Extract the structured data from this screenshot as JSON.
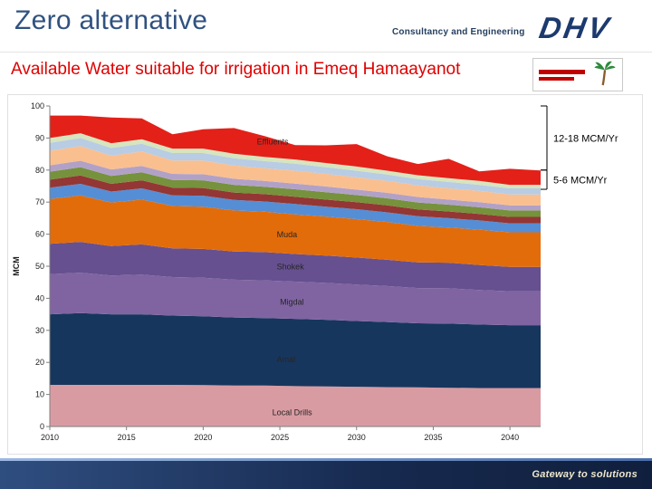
{
  "slide": {
    "title": "Zero alternative",
    "subtitle": "Available Water suitable for irrigation in Emeq Hamaayanot",
    "consultancy_text": "Consultancy and Engineering",
    "logo_text": "DHV",
    "footer_tagline": "Gateway to solutions"
  },
  "annotations": {
    "brackets": [
      {
        "label": "12-18 MCM/Yr",
        "from": 100,
        "to": 80
      },
      {
        "label": "5-6 MCM/Yr",
        "from": 80,
        "to": 74
      }
    ]
  },
  "chart_data": {
    "type": "area",
    "stacked": true,
    "title": "Available Water suitable for irrigation in Emeq Hamaayanot",
    "xlabel": "",
    "ylabel": "MCM",
    "ylim": [
      0,
      100
    ],
    "y_ticks": [
      0,
      10,
      20,
      30,
      40,
      50,
      60,
      70,
      80,
      90,
      100
    ],
    "x_ticks": [
      2010,
      2015,
      2020,
      2025,
      2030,
      2035,
      2040
    ],
    "x": [
      2010,
      2012,
      2014,
      2016,
      2018,
      2020,
      2022,
      2024,
      2026,
      2028,
      2030,
      2032,
      2034,
      2036,
      2038,
      2040,
      2042
    ],
    "series": [
      {
        "label": "Local Drills",
        "color": "#d99ba2",
        "values": [
          13,
          13,
          13,
          13,
          13,
          12.9,
          12.8,
          12.8,
          12.6,
          12.5,
          12.4,
          12.3,
          12.2,
          12.1,
          12,
          12,
          12
        ]
      },
      {
        "label": "Amal",
        "color": "#17365d",
        "values": [
          22,
          22.4,
          22,
          22,
          21.6,
          21.5,
          21.2,
          21,
          21,
          20.8,
          20.5,
          20.3,
          20,
          20,
          19.8,
          19.6,
          19.6
        ]
      },
      {
        "label": "Migdal",
        "color": "#8064a2",
        "values": [
          12.5,
          12.6,
          12.1,
          12.4,
          12,
          12,
          11.8,
          11.8,
          11.6,
          11.5,
          11.4,
          11.2,
          11,
          11,
          10.8,
          10.6,
          10.6
        ]
      },
      {
        "label": "Shokek",
        "color": "#66508f",
        "values": [
          9.5,
          9.6,
          9.2,
          9.4,
          9,
          9,
          8.8,
          8.8,
          8.6,
          8.5,
          8.4,
          8.2,
          8,
          8,
          7.8,
          7.6,
          7.6
        ]
      },
      {
        "label": "Muda",
        "color": "#e36c0a",
        "values": [
          14,
          14.5,
          13.6,
          14,
          13.2,
          13.2,
          12.8,
          12.6,
          12.4,
          12.2,
          12,
          11.8,
          11.4,
          11,
          11,
          10.8,
          10.8
        ]
      },
      {
        "label": "",
        "color": "#558ed5",
        "values": [
          3.5,
          3.6,
          3.4,
          3.5,
          3.3,
          3.4,
          3.3,
          3.2,
          3.2,
          3.1,
          3.1,
          3,
          3,
          2.9,
          2.9,
          2.8,
          2.8
        ]
      },
      {
        "label": "",
        "color": "#943634",
        "values": [
          2.5,
          2.6,
          2.4,
          2.5,
          2.4,
          2.4,
          2.3,
          2.3,
          2.3,
          2.2,
          2.2,
          2.2,
          2.1,
          2.1,
          2,
          2,
          2
        ]
      },
      {
        "label": "",
        "color": "#76923c",
        "values": [
          2.5,
          2.6,
          2.5,
          2.5,
          2.4,
          2.4,
          2.4,
          2.3,
          2.3,
          2.3,
          2.2,
          2.2,
          2.2,
          2.1,
          2.1,
          2,
          2
        ]
      },
      {
        "label": "",
        "color": "#b2a1c7",
        "values": [
          2,
          2,
          2,
          2,
          1.9,
          1.9,
          1.9,
          1.8,
          1.8,
          1.8,
          1.7,
          1.7,
          1.7,
          1.6,
          1.6,
          1.6,
          1.6
        ]
      },
      {
        "label": "",
        "color": "#fabf8f",
        "values": [
          4.5,
          4.6,
          4.3,
          4.5,
          4.2,
          4.3,
          4.1,
          4,
          4,
          3.9,
          3.8,
          3.7,
          3.6,
          3.5,
          3.5,
          3.4,
          3.4
        ]
      },
      {
        "label": "",
        "color": "#b8cce4",
        "values": [
          2.5,
          2.5,
          2.4,
          2.4,
          2.3,
          2.3,
          2.3,
          2.2,
          2.2,
          2.1,
          2.1,
          2,
          2,
          2,
          1.9,
          1.9,
          1.9
        ]
      },
      {
        "label": "",
        "color": "#d7e4bd",
        "values": [
          1.5,
          1.5,
          1.5,
          1.4,
          1.4,
          1.4,
          1.4,
          1.3,
          1.3,
          1.3,
          1.3,
          1.2,
          1.2,
          1.2,
          1.2,
          1.1,
          1.1
        ]
      },
      {
        "label": "Effluents",
        "color": "#e32119",
        "values": [
          7,
          5.5,
          8,
          6.5,
          4.5,
          6,
          8,
          6.5,
          4.5,
          5.5,
          7,
          4.5,
          3.5,
          6,
          3,
          5,
          4.5
        ]
      }
    ],
    "series_labels": [
      {
        "text": "Effluents",
        "year": 2023.5,
        "mcm": 88
      },
      {
        "text": "Muda",
        "year": 2024.8,
        "mcm": 59
      },
      {
        "text": "Shokek",
        "year": 2024.8,
        "mcm": 49
      },
      {
        "text": "Migdal",
        "year": 2025.0,
        "mcm": 38
      },
      {
        "text": "Amal",
        "year": 2024.8,
        "mcm": 20
      },
      {
        "text": "Local Drills",
        "year": 2024.5,
        "mcm": 3.5
      }
    ]
  }
}
